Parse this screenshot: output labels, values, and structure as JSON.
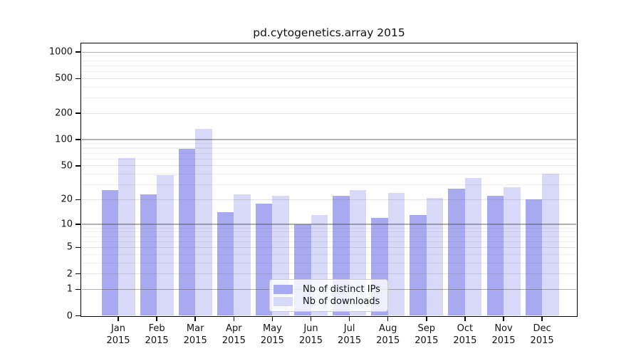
{
  "title": "pd.cytogenetics.array 2015",
  "chart_data": {
    "type": "bar",
    "title": "pd.cytogenetics.array 2015",
    "categories": [
      "Jan",
      "Feb",
      "Mar",
      "Apr",
      "May",
      "Jun",
      "Jul",
      "Aug",
      "Sep",
      "Oct",
      "Nov",
      "Dec"
    ],
    "year": "2015",
    "series": [
      {
        "name": "Nb of distinct IPs",
        "color": "#a9a9f1",
        "values": [
          26,
          23,
          78,
          14,
          18,
          10,
          22,
          12,
          13,
          27,
          22,
          20
        ]
      },
      {
        "name": "Nb of downloads",
        "color": "#d8d8f9",
        "values": [
          61,
          39,
          133,
          23,
          22,
          13,
          26,
          24,
          21,
          36,
          28,
          40
        ]
      }
    ],
    "xlabel": "",
    "ylabel": "",
    "y_scale": "log1p",
    "y_ticks": [
      1000,
      500,
      200,
      100,
      50,
      20,
      10,
      5,
      2,
      1,
      0
    ],
    "y_major_grid_values": [
      1,
      10,
      100,
      1000
    ],
    "y_mid_grid_values": [
      2,
      5,
      20,
      50,
      200,
      500
    ],
    "ylim": [
      0,
      1250
    ],
    "grid": "horizontal",
    "legend_position": "lower-center"
  }
}
